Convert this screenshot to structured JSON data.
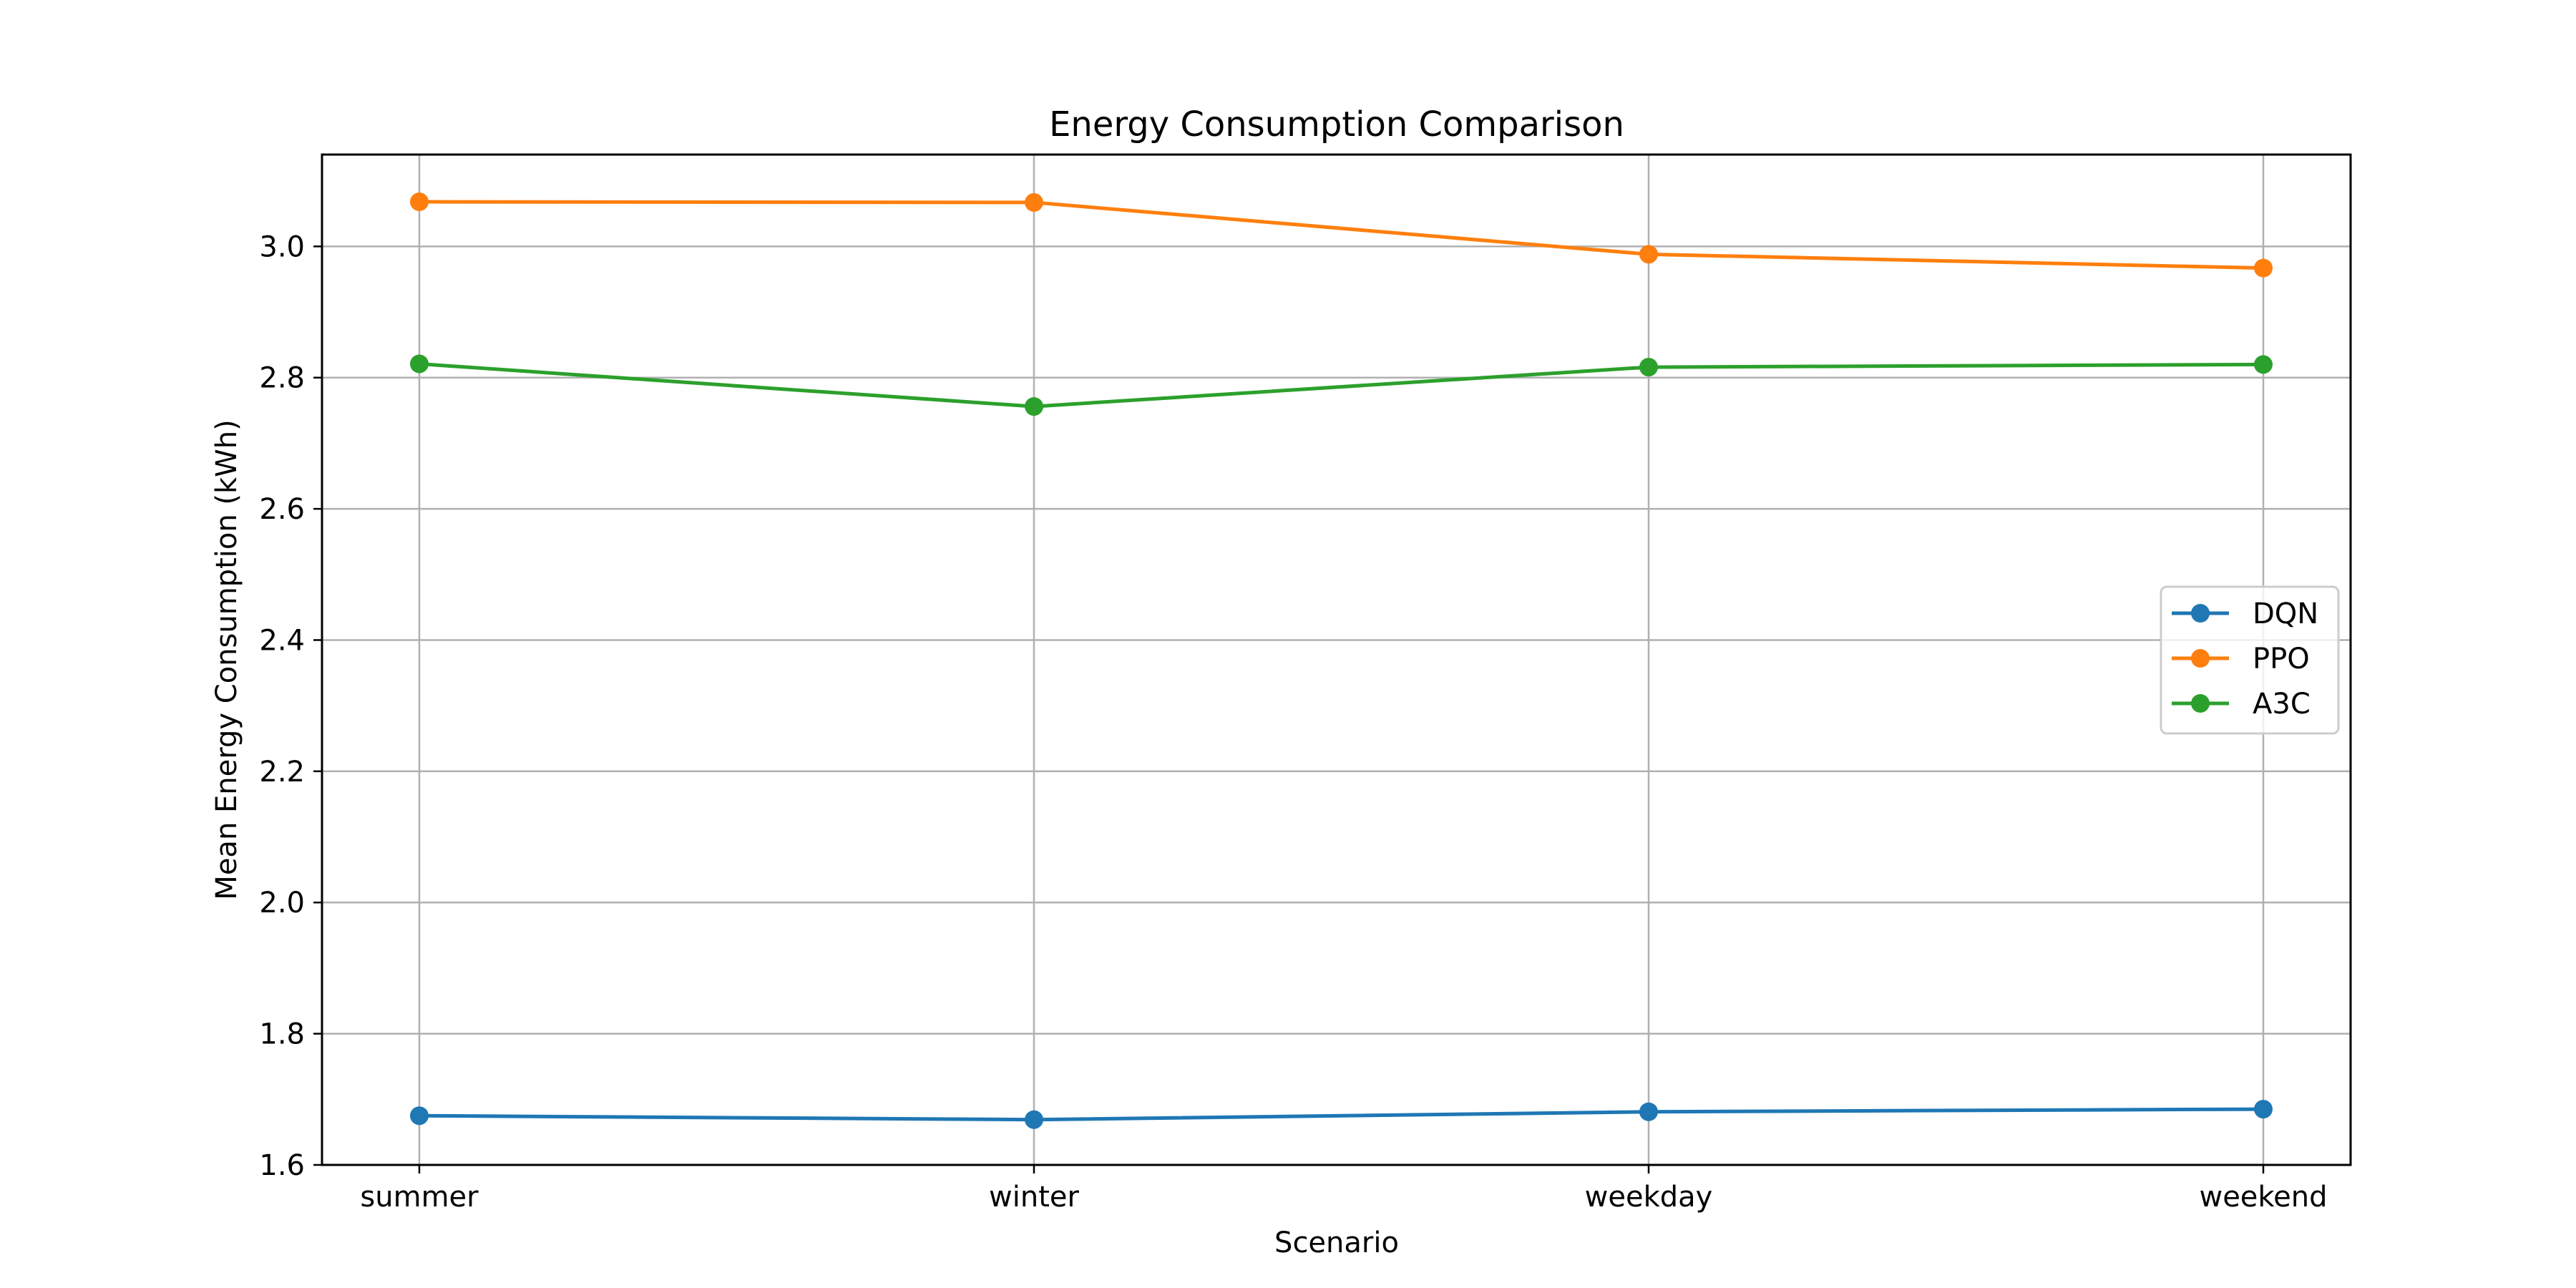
{
  "chart_data": {
    "type": "line",
    "title": "Energy Consumption Comparison",
    "xlabel": "Scenario",
    "ylabel": "Mean Energy Consumption (kWh)",
    "categories": [
      "summer",
      "winter",
      "weekday",
      "weekend"
    ],
    "ylim": [
      1.6,
      3.14
    ],
    "yticks": [
      1.6,
      1.8,
      2.0,
      2.2,
      2.4,
      2.6,
      2.8,
      3.0
    ],
    "grid": true,
    "legend_position": "center-right",
    "series": [
      {
        "name": "DQN",
        "color": "#1f77b4",
        "values": [
          1.675,
          1.669,
          1.681,
          1.685
        ]
      },
      {
        "name": "PPO",
        "color": "#ff7f0e",
        "values": [
          3.068,
          3.067,
          2.988,
          2.967
        ]
      },
      {
        "name": "A3C",
        "color": "#2ca02c",
        "values": [
          2.821,
          2.756,
          2.816,
          2.82
        ]
      }
    ]
  }
}
